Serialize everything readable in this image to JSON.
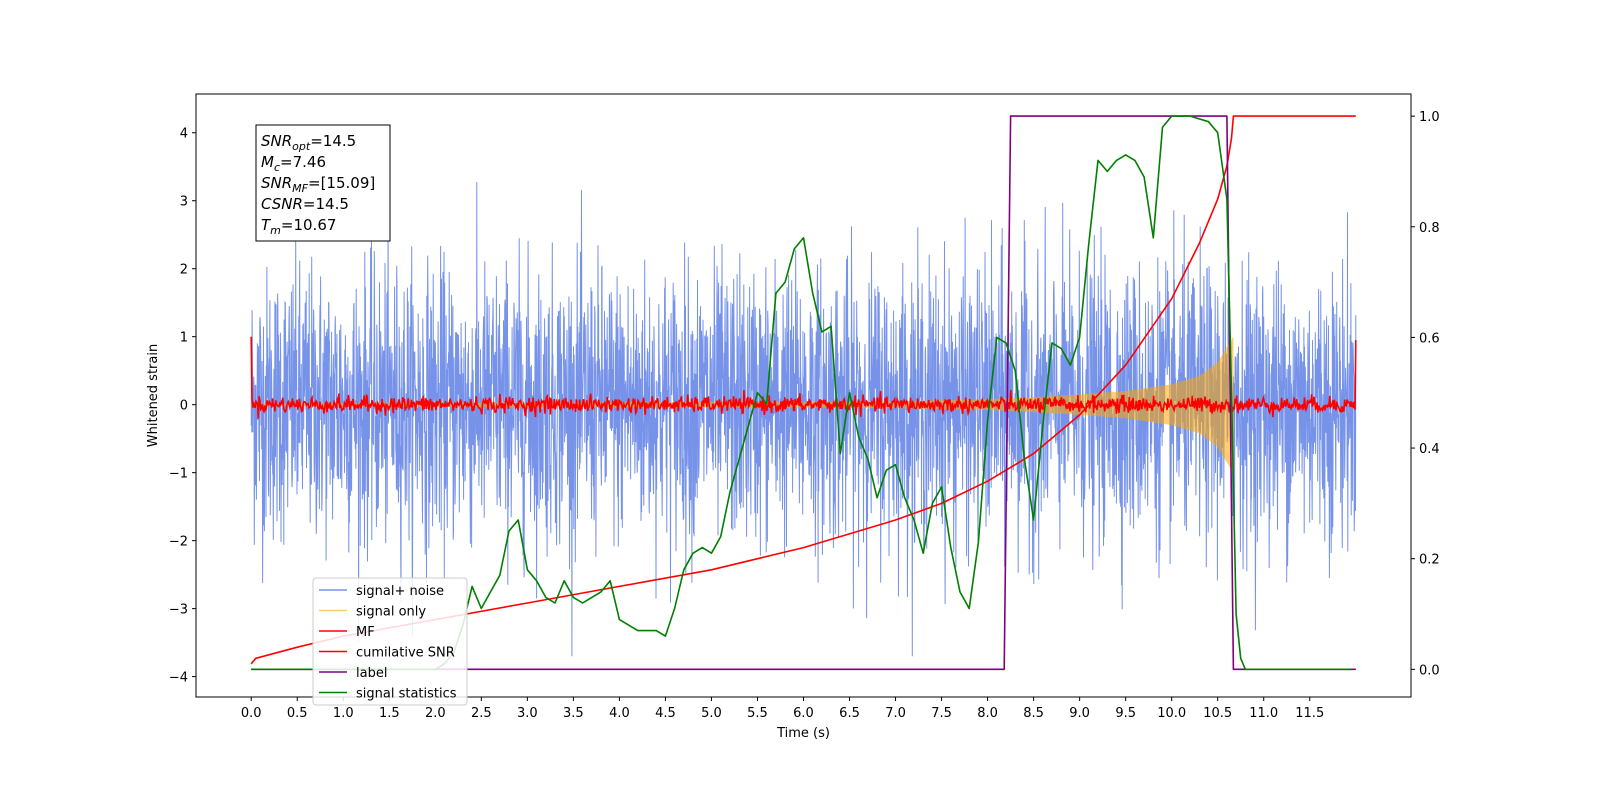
{
  "chart_data": {
    "type": "line",
    "xlabel": "Time (s)",
    "ylabel": "Whitened strain",
    "xlim": [
      -0.6,
      12.6
    ],
    "ylim_left": [
      -4.3,
      4.57
    ],
    "ylim_right": [
      -0.05,
      1.04
    ],
    "x_ticks": [
      0.0,
      0.5,
      1.0,
      1.5,
      2.0,
      2.5,
      3.0,
      3.5,
      4.0,
      4.5,
      5.0,
      5.5,
      6.0,
      6.5,
      7.0,
      7.5,
      8.0,
      8.5,
      9.0,
      9.5,
      10.0,
      10.5,
      11.0,
      11.5
    ],
    "x_tick_labels": [
      "0.0",
      "0.5",
      "1.0",
      "1.5",
      "2.0",
      "2.5",
      "3.0",
      "3.5",
      "4.0",
      "4.5",
      "5.0",
      "5.5",
      "6.0",
      "6.5",
      "7.0",
      "7.5",
      "8.0",
      "8.5",
      "9.0",
      "9.5",
      "10.0",
      "10.5",
      "11.0",
      "11.5"
    ],
    "y_left_ticks": [
      4,
      3,
      2,
      1,
      0,
      -1,
      -2,
      -3,
      -4
    ],
    "y_left_tick_labels": [
      "4",
      "3",
      "2",
      "1",
      "0",
      "−1",
      "−2",
      "−3",
      "−4"
    ],
    "y_right_ticks": [
      1.0,
      0.8,
      0.6,
      0.4,
      0.2,
      0.0
    ],
    "y_right_tick_labels": [
      "1.0",
      "0.8",
      "0.6",
      "0.4",
      "0.2",
      "0.0"
    ],
    "legend_position": "lower-left",
    "annotation": {
      "lines": [
        {
          "base": "SNR",
          "sub": "opt",
          "rest": "=14.5"
        },
        {
          "base": "M",
          "sub": "c",
          "rest": "=7.46"
        },
        {
          "base": "SNR",
          "sub": "MF",
          "rest": "=[15.09]"
        },
        {
          "base": "CSNR",
          "sub": "",
          "rest": "=14.5"
        },
        {
          "base": "T",
          "sub": "m",
          "rest": "=10.67"
        }
      ]
    },
    "series": [
      {
        "name": "signal+ noise",
        "axis": "left",
        "color": "#4169e1",
        "description_level": "noise std approx 1.0, peaks to about 3.6 / -3.7",
        "n_samples": 3600,
        "x_range": [
          0.0,
          12.0
        ]
      },
      {
        "name": "signal only",
        "axis": "left",
        "color": "#ffa500",
        "envelope": {
          "x": [
            0.0,
            7.0,
            8.0,
            8.5,
            9.0,
            9.5,
            10.0,
            10.3,
            10.5,
            10.6,
            10.67
          ],
          "amplitude": [
            0.02,
            0.05,
            0.08,
            0.11,
            0.15,
            0.2,
            0.3,
            0.42,
            0.62,
            0.85,
            1.0
          ]
        }
      },
      {
        "name": "MF",
        "axis": "left",
        "color": "#ff0000",
        "start_value": 1.0,
        "end_value": 0.95,
        "noise_amplitude": 0.06
      },
      {
        "name": "cumilative SNR",
        "axis": "right",
        "color": "#ff0000",
        "x": [
          0.0,
          0.05,
          0.5,
          1.0,
          2.0,
          3.0,
          4.0,
          5.0,
          6.0,
          7.0,
          7.5,
          8.0,
          8.5,
          9.0,
          9.5,
          10.0,
          10.3,
          10.5,
          10.6,
          10.65,
          10.67,
          10.7,
          12.0
        ],
        "y": [
          0.01,
          0.02,
          0.04,
          0.06,
          0.09,
          0.12,
          0.15,
          0.18,
          0.22,
          0.27,
          0.3,
          0.34,
          0.39,
          0.46,
          0.55,
          0.67,
          0.77,
          0.85,
          0.91,
          0.96,
          1.0,
          1.0,
          1.0
        ]
      },
      {
        "name": "label",
        "axis": "right",
        "color": "#800080",
        "x": [
          0.0,
          8.18,
          8.25,
          10.6,
          10.67,
          12.0
        ],
        "y": [
          0.0,
          0.0,
          1.0,
          1.0,
          0.0,
          0.0
        ]
      },
      {
        "name": "signal statistics",
        "axis": "right",
        "color": "#008000",
        "x": [
          0.0,
          0.5,
          1.0,
          1.5,
          2.0,
          2.1,
          2.2,
          2.3,
          2.4,
          2.5,
          2.6,
          2.7,
          2.8,
          2.9,
          3.0,
          3.1,
          3.2,
          3.3,
          3.4,
          3.5,
          3.6,
          3.7,
          3.8,
          3.9,
          4.0,
          4.1,
          4.2,
          4.3,
          4.4,
          4.5,
          4.6,
          4.7,
          4.8,
          4.9,
          5.0,
          5.1,
          5.2,
          5.3,
          5.4,
          5.5,
          5.6,
          5.7,
          5.8,
          5.9,
          6.0,
          6.1,
          6.2,
          6.3,
          6.4,
          6.5,
          6.6,
          6.7,
          6.8,
          6.9,
          7.0,
          7.1,
          7.2,
          7.3,
          7.4,
          7.5,
          7.6,
          7.7,
          7.8,
          7.9,
          8.0,
          8.1,
          8.2,
          8.3,
          8.4,
          8.5,
          8.6,
          8.7,
          8.8,
          8.9,
          9.0,
          9.1,
          9.2,
          9.3,
          9.4,
          9.5,
          9.6,
          9.7,
          9.8,
          9.9,
          10.0,
          10.2,
          10.4,
          10.5,
          10.6,
          10.65,
          10.7,
          10.75,
          10.8,
          11.0,
          11.5,
          11.95
        ],
        "y": [
          0.0,
          0.0,
          0.0,
          0.0,
          0.0,
          0.01,
          0.03,
          0.08,
          0.15,
          0.11,
          0.14,
          0.17,
          0.25,
          0.27,
          0.18,
          0.16,
          0.13,
          0.12,
          0.16,
          0.13,
          0.12,
          0.13,
          0.14,
          0.16,
          0.09,
          0.08,
          0.07,
          0.07,
          0.07,
          0.06,
          0.11,
          0.18,
          0.21,
          0.22,
          0.21,
          0.24,
          0.32,
          0.38,
          0.44,
          0.5,
          0.48,
          0.68,
          0.7,
          0.76,
          0.78,
          0.68,
          0.61,
          0.62,
          0.39,
          0.5,
          0.42,
          0.38,
          0.31,
          0.36,
          0.37,
          0.31,
          0.27,
          0.21,
          0.3,
          0.33,
          0.22,
          0.14,
          0.11,
          0.23,
          0.45,
          0.6,
          0.59,
          0.54,
          0.38,
          0.27,
          0.44,
          0.59,
          0.58,
          0.55,
          0.6,
          0.77,
          0.92,
          0.9,
          0.92,
          0.93,
          0.92,
          0.89,
          0.78,
          0.98,
          1.0,
          1.0,
          0.99,
          0.97,
          0.85,
          0.5,
          0.1,
          0.02,
          0.0,
          0.0,
          0.0,
          0.0
        ]
      }
    ]
  }
}
